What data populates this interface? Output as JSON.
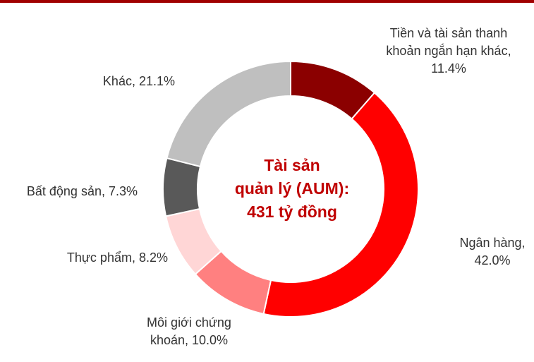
{
  "chart_data": {
    "type": "donut",
    "values": [
      11.4,
      42.0,
      10.0,
      8.2,
      7.3,
      21.1
    ],
    "value_labels": [
      [
        "Tiền và tài sản thanh",
        "khoản ngắn hạn khác,",
        "11.4%"
      ],
      [
        "Ngân hàng,",
        "42.0%"
      ],
      [
        "Môi giới chứng",
        "khoán, 10.0%"
      ],
      [
        "Thực phẩm, 8.2%"
      ],
      [
        "Bất động sản, 7.3%"
      ],
      [
        "Khác, 21.1%"
      ]
    ],
    "colors": [
      "#8b0000",
      "#ff0000",
      "#ff8080",
      "#ffd6d6",
      "#595959",
      "#bfbfbf"
    ],
    "center_label": [
      "Tài sản",
      "quản lý (AUM):",
      "431 tỷ đồng"
    ]
  }
}
